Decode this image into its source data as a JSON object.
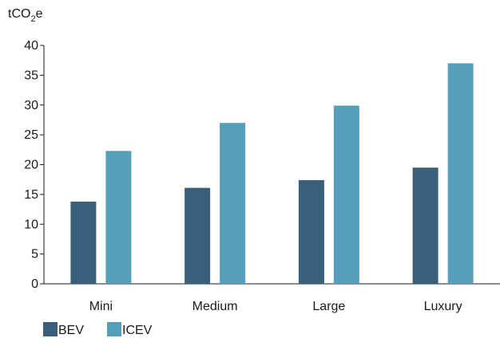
{
  "chart_data": {
    "type": "bar",
    "unit_label": {
      "prefix": "tCO",
      "subscript": "2",
      "suffix": "e"
    },
    "categories": [
      "Mini",
      "Medium",
      "Large",
      "Luxury"
    ],
    "series": [
      {
        "name": "BEV",
        "color": "#3a5f7a",
        "values": [
          13.8,
          16.1,
          17.4,
          19.5
        ]
      },
      {
        "name": "ICEV",
        "color": "#569fba",
        "values": [
          22.3,
          27.0,
          29.9,
          37.0
        ]
      }
    ],
    "ylim": [
      0,
      40
    ],
    "yticks": [
      "0",
      "5",
      "10",
      "15",
      "20",
      "25",
      "30",
      "35",
      "40"
    ],
    "grid": false,
    "legend_position": "bottom-left"
  }
}
